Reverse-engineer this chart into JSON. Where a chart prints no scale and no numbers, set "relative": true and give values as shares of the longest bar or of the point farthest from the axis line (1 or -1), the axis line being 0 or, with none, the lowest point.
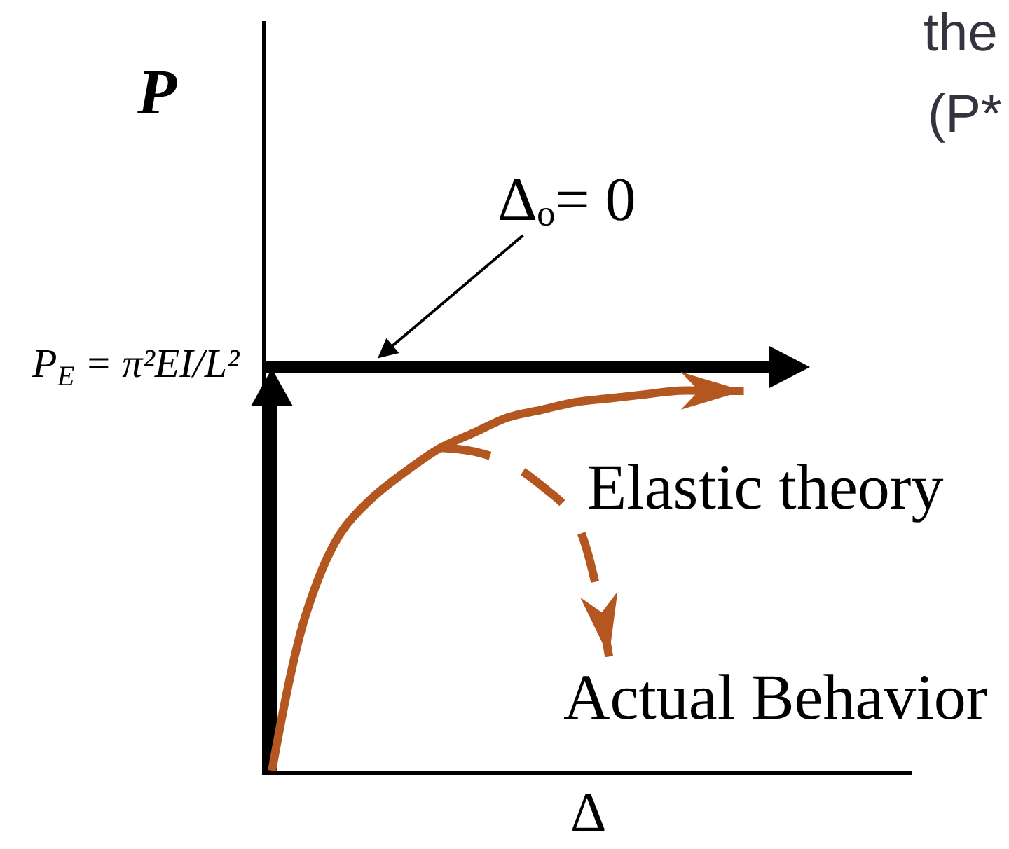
{
  "chart_data": {
    "type": "line",
    "relative": true,
    "xlabel": "Δ",
    "ylabel": "P",
    "categories": [
      null,
      null,
      null,
      null,
      null,
      null,
      null,
      null,
      null,
      null,
      null,
      null,
      null,
      null,
      null,
      null,
      null,
      null,
      null,
      null
    ],
    "series": [
      {
        "name": "Elastic theory",
        "color": "#b4561f",
        "values": [
          0,
          0.41,
          0.62,
          0.72,
          0.79,
          0.85,
          0.89,
          0.93,
          0.95,
          0.97,
          0.98,
          0.99,
          1,
          1,
          1,
          null,
          null,
          null,
          null,
          null
        ]
      },
      {
        "name": "Actual Behavior",
        "line_style": "dashed",
        "color": "#b4561f",
        "values": [
          null,
          null,
          null,
          null,
          null,
          0.85,
          0.84,
          0.81,
          0.75,
          0.66,
          0.3,
          null,
          null,
          null,
          null,
          null,
          null,
          null,
          null,
          null
        ]
      }
    ],
    "annotations": [
      "Δₒ= 0",
      "P$_{E}$ = π²EI/L²",
      "the",
      "(P*"
    ]
  }
}
